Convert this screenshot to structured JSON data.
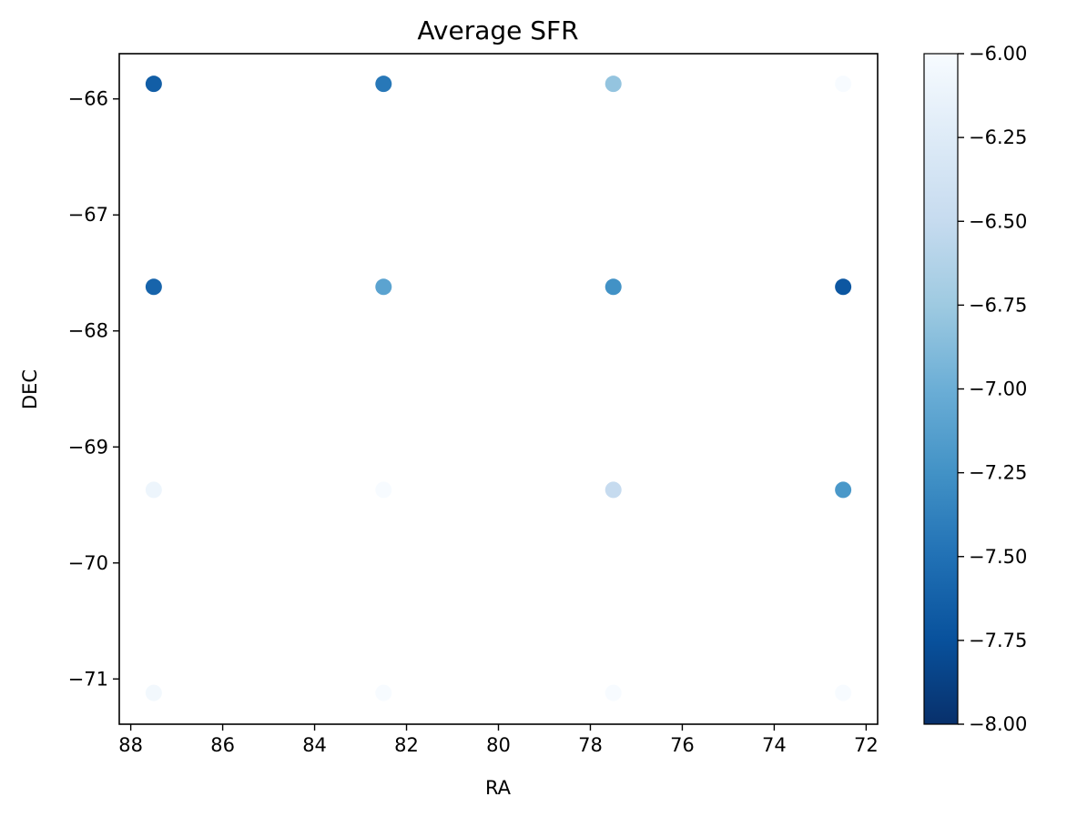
{
  "chart_data": {
    "type": "scatter",
    "title": "Average SFR",
    "xlabel": "RA",
    "ylabel": "DEC",
    "xlim": [
      88.25,
      71.75
    ],
    "ylim": [
      -71.39,
      -65.61
    ],
    "x_axis_inverted": true,
    "xticks": [
      88,
      86,
      84,
      82,
      80,
      78,
      76,
      74,
      72
    ],
    "xtick_labels": [
      "88",
      "86",
      "84",
      "82",
      "80",
      "78",
      "76",
      "74",
      "72"
    ],
    "yticks": [
      -66,
      -67,
      -68,
      -69,
      -70,
      -71
    ],
    "ytick_labels": [
      "−66",
      "−67",
      "−68",
      "−69",
      "−70",
      "−71"
    ],
    "grid": false,
    "colormap": "Blues_r",
    "colormap_stops": [
      "#08306b",
      "#08519c",
      "#2171b5",
      "#4292c6",
      "#6baed6",
      "#9ecae1",
      "#c6dbef",
      "#deebf7",
      "#f7fbff"
    ],
    "colorbar": {
      "min": -8.0,
      "max": -6.0,
      "ticks": [
        -8.0,
        -7.75,
        -7.5,
        -7.25,
        -7.0,
        -6.75,
        -6.5,
        -6.25,
        -6.0
      ],
      "tick_labels": [
        "−8.00",
        "−7.75",
        "−7.50",
        "−7.25",
        "−7.00",
        "−6.75",
        "−6.50",
        "−6.25",
        "−6.00"
      ]
    },
    "points": [
      {
        "x": 87.5,
        "y": -65.87,
        "value": -7.65
      },
      {
        "x": 82.5,
        "y": -65.87,
        "value": -7.45
      },
      {
        "x": 77.5,
        "y": -65.87,
        "value": -6.8
      },
      {
        "x": 72.5,
        "y": -65.87,
        "value": -6.0
      },
      {
        "x": 87.5,
        "y": -67.62,
        "value": -7.6
      },
      {
        "x": 82.5,
        "y": -67.62,
        "value": -7.1
      },
      {
        "x": 77.5,
        "y": -67.62,
        "value": -7.25
      },
      {
        "x": 72.5,
        "y": -67.62,
        "value": -7.7
      },
      {
        "x": 87.5,
        "y": -69.37,
        "value": -6.1
      },
      {
        "x": 82.5,
        "y": -69.37,
        "value": -6.0
      },
      {
        "x": 77.5,
        "y": -69.37,
        "value": -6.5
      },
      {
        "x": 72.5,
        "y": -69.37,
        "value": -7.2
      },
      {
        "x": 87.5,
        "y": -71.12,
        "value": -6.05
      },
      {
        "x": 82.5,
        "y": -71.12,
        "value": -6.0
      },
      {
        "x": 77.5,
        "y": -71.12,
        "value": -6.0
      },
      {
        "x": 72.5,
        "y": -71.12,
        "value": -6.0
      }
    ]
  }
}
